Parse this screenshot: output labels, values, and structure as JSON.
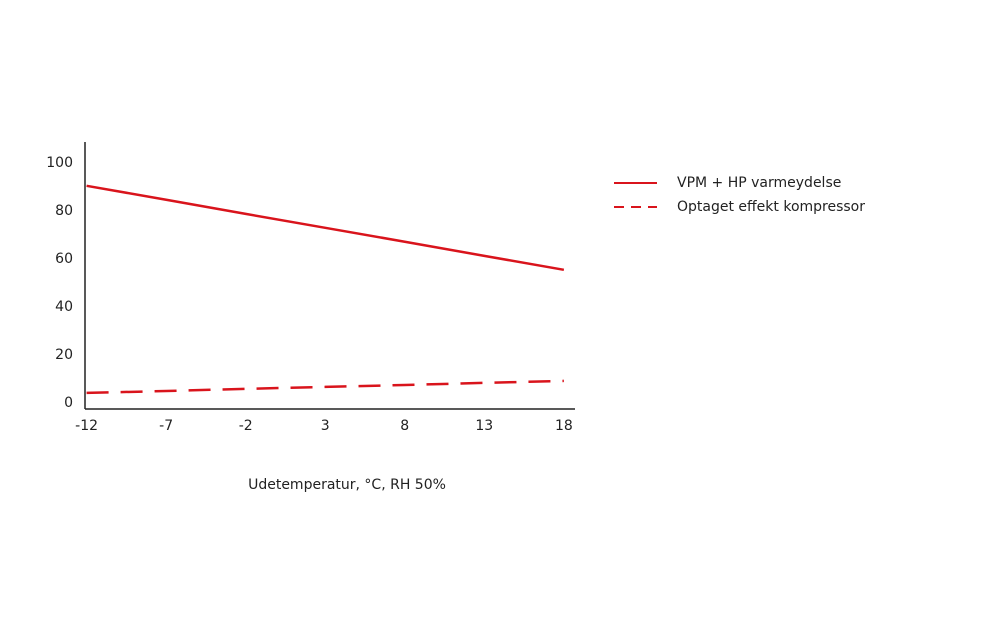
{
  "chart_data": {
    "type": "line",
    "x": [
      -12,
      -7,
      -2,
      3,
      8,
      13,
      18
    ],
    "xlim": [
      -12.1,
      18.7
    ],
    "xticks": [
      -12,
      -7,
      -2,
      3,
      8,
      13,
      18
    ],
    "ylim": [
      -2.5,
      108.75
    ],
    "yticks": [
      0,
      20,
      40,
      60,
      80,
      100
    ],
    "x_label": "Udetemperatur, °C, RH 50%",
    "grid": false,
    "series": [
      {
        "name": "VPM + HP varmeydelse",
        "color": "#d9141c",
        "dash": "solid",
        "values": [
          90.5,
          84.7,
          78.8,
          73,
          67.2,
          61.3,
          55.5
        ]
      },
      {
        "name": "Optaget effekt kompressor",
        "color": "#d9141c",
        "dash": "dashed",
        "values": [
          4.2,
          5,
          5.9,
          6.7,
          7.5,
          8.4,
          9.2
        ]
      }
    ]
  }
}
